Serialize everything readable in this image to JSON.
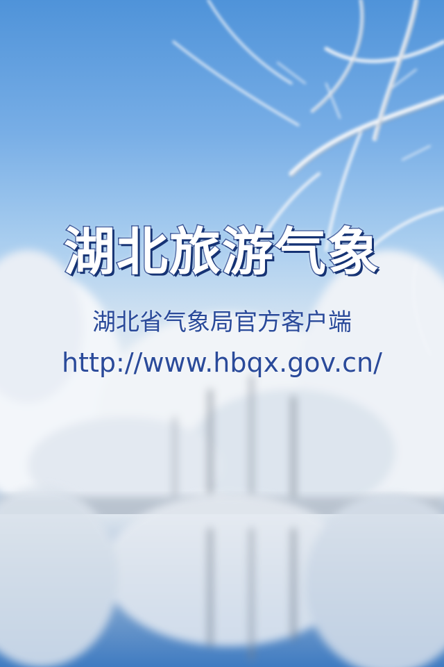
{
  "splash": {
    "title": "湖北旅游气象",
    "subtitle": "湖北省气象局官方客户端",
    "url": "http://www.hbqx.gov.cn/"
  },
  "colors": {
    "sky_top": "#4f93d9",
    "snow": "#eef2f6",
    "title_outline": "#1f3f8a",
    "text_blue": "#2a4a9a"
  }
}
